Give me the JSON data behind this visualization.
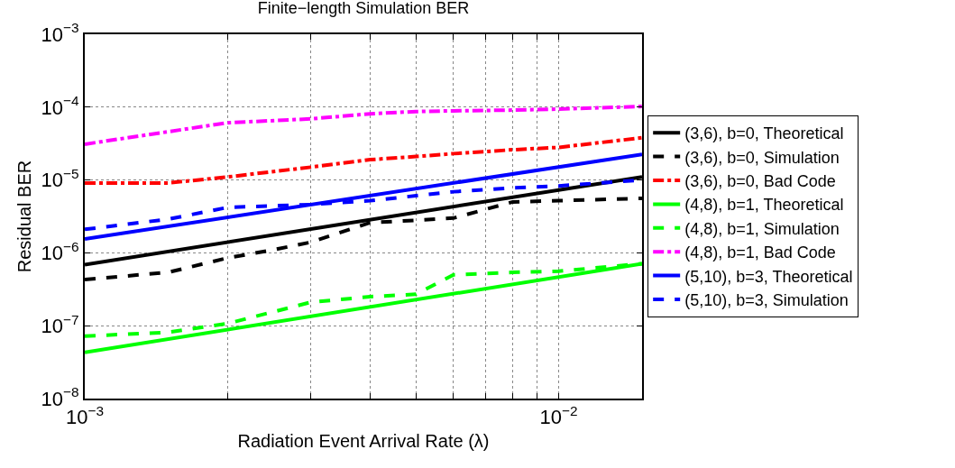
{
  "chart_data": {
    "type": "line",
    "title": "Finite−length Simulation BER",
    "xlabel": "Radiation Event Arrival Rate (λ)",
    "ylabel": "Residual BER",
    "log": "xy",
    "grid": true,
    "legend": "right",
    "xlim": [
      0.001,
      0.015
    ],
    "ylim": [
      1e-08,
      0.001
    ],
    "xticks": [
      {
        "value": 0.001,
        "label": "10$^{−3}$"
      },
      {
        "value": 0.002,
        "label": null
      },
      {
        "value": 0.003,
        "label": null
      },
      {
        "value": 0.004,
        "label": null
      },
      {
        "value": 0.005,
        "label": null
      },
      {
        "value": 0.006,
        "label": null
      },
      {
        "value": 0.007,
        "label": null
      },
      {
        "value": 0.008,
        "label": null
      },
      {
        "value": 0.009,
        "label": null
      },
      {
        "value": 0.01,
        "label": "10$^{−2}$"
      }
    ],
    "yticks": [
      {
        "value": 1e-08,
        "label": "10$^{−8}$"
      },
      {
        "value": 1e-07,
        "label": "10$^{−7}$"
      },
      {
        "value": 1e-06,
        "label": "10$^{−6}$"
      },
      {
        "value": 1e-05,
        "label": "10$^{−5}$"
      },
      {
        "value": 0.0001,
        "label": "10$^{−4}$"
      },
      {
        "value": 0.001,
        "label": "10$^{−3}$"
      }
    ],
    "series": [
      {
        "name": "(3,6), b=0, Theoretical",
        "color": "#000000",
        "line_style": "solid",
        "x": [
          0.001,
          0.015
        ],
        "values": [
          6.9e-07,
          1.1e-05
        ]
      },
      {
        "name": "(3,6), b=0, Simulation",
        "color": "#000000",
        "line_style": "dashed",
        "x": [
          0.001,
          0.0015,
          0.002,
          0.0025,
          0.003,
          0.004,
          0.005,
          0.006,
          0.008,
          0.01,
          0.015
        ],
        "values": [
          4.3e-07,
          5.4e-07,
          8.5e-07,
          1.1e-06,
          1.4e-06,
          2.6e-06,
          2.8e-06,
          3e-06,
          5e-06,
          5.2e-06,
          5.6e-06
        ]
      },
      {
        "name": "(3,6), b=0, Bad Code",
        "color": "#ff0000",
        "line_style": "dashdot",
        "x": [
          0.001,
          0.0015,
          0.002,
          0.003,
          0.004,
          0.005,
          0.006,
          0.008,
          0.01,
          0.015
        ],
        "values": [
          9.1e-06,
          9.1e-06,
          1.1e-05,
          1.5e-05,
          1.9e-05,
          2.1e-05,
          2.3e-05,
          2.6e-05,
          2.8e-05,
          3.8e-05
        ]
      },
      {
        "name": "(4,8), b=1, Theoretical",
        "color": "#00ff00",
        "line_style": "solid",
        "x": [
          0.001,
          0.015
        ],
        "values": [
          4.3e-08,
          7.1e-07
        ]
      },
      {
        "name": "(4,8), b=1, Simulation",
        "color": "#00ff00",
        "line_style": "dashed",
        "x": [
          0.001,
          0.0015,
          0.002,
          0.003,
          0.004,
          0.005,
          0.006,
          0.008,
          0.01,
          0.015
        ],
        "values": [
          7.2e-08,
          8.1e-08,
          1.07e-07,
          2.1e-07,
          2.5e-07,
          2.7e-07,
          5e-07,
          5.4e-07,
          5.6e-07,
          7.1e-07
        ]
      },
      {
        "name": "(4,8), b=1, Bad Code",
        "color": "#ff00ff",
        "line_style": "dashdot",
        "x": [
          0.001,
          0.0015,
          0.002,
          0.003,
          0.004,
          0.005,
          0.006,
          0.008,
          0.01,
          0.015
        ],
        "values": [
          3.1e-05,
          4.6e-05,
          6.1e-05,
          6.9e-05,
          8.1e-05,
          8.7e-05,
          8.9e-05,
          9.1e-05,
          9.4e-05,
          0.000102
        ]
      },
      {
        "name": "(5,10), b=3, Theoretical",
        "color": "#0000ff",
        "line_style": "solid",
        "x": [
          0.001,
          0.015
        ],
        "values": [
          1.55e-06,
          2.25e-05
        ]
      },
      {
        "name": "(5,10), b=3, Simulation",
        "color": "#0000ff",
        "line_style": "dashed",
        "x": [
          0.001,
          0.0015,
          0.002,
          0.003,
          0.004,
          0.006,
          0.008,
          0.01,
          0.015
        ],
        "values": [
          2.1e-06,
          2.9e-06,
          4.2e-06,
          4.6e-06,
          5.2e-06,
          6.9e-06,
          7.8e-06,
          8.3e-06,
          1e-05
        ]
      }
    ]
  }
}
